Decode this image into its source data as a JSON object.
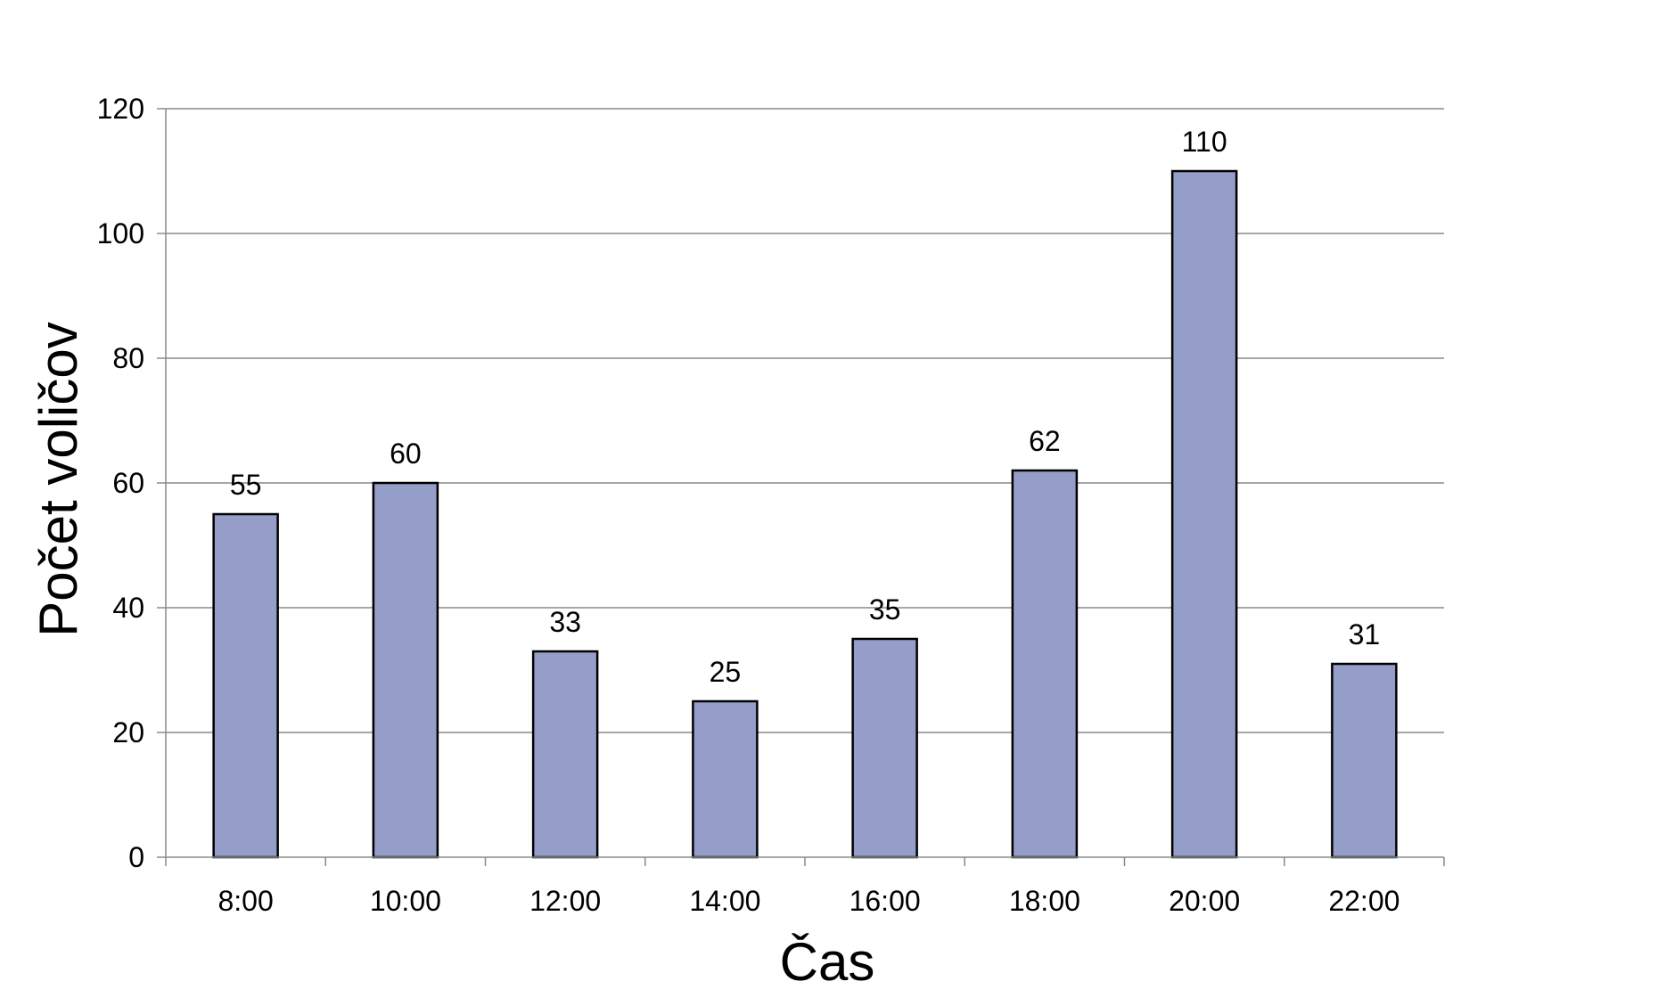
{
  "chart_data": {
    "type": "bar",
    "categories": [
      "8:00",
      "10:00",
      "12:00",
      "14:00",
      "16:00",
      "18:00",
      "20:00",
      "22:00"
    ],
    "values": [
      55,
      60,
      33,
      25,
      35,
      62,
      110,
      31
    ],
    "data_labels": [
      "55",
      "60",
      "33",
      "25",
      "35",
      "62",
      "110",
      "31"
    ],
    "title": "",
    "xlabel": "Čas",
    "ylabel": "Počet voličov",
    "ylim": [
      0,
      120
    ],
    "yticks": [
      0,
      20,
      40,
      60,
      80,
      100,
      120
    ],
    "ytick_labels": [
      "0",
      "20",
      "40",
      "60",
      "80",
      "100",
      "120"
    ],
    "grid": true,
    "legend": "none",
    "colors": {
      "bar_fill": "#959dc9",
      "bar_stroke": "#000000",
      "grid": "#8a8a8a",
      "axis": "#8a8a8a"
    }
  }
}
